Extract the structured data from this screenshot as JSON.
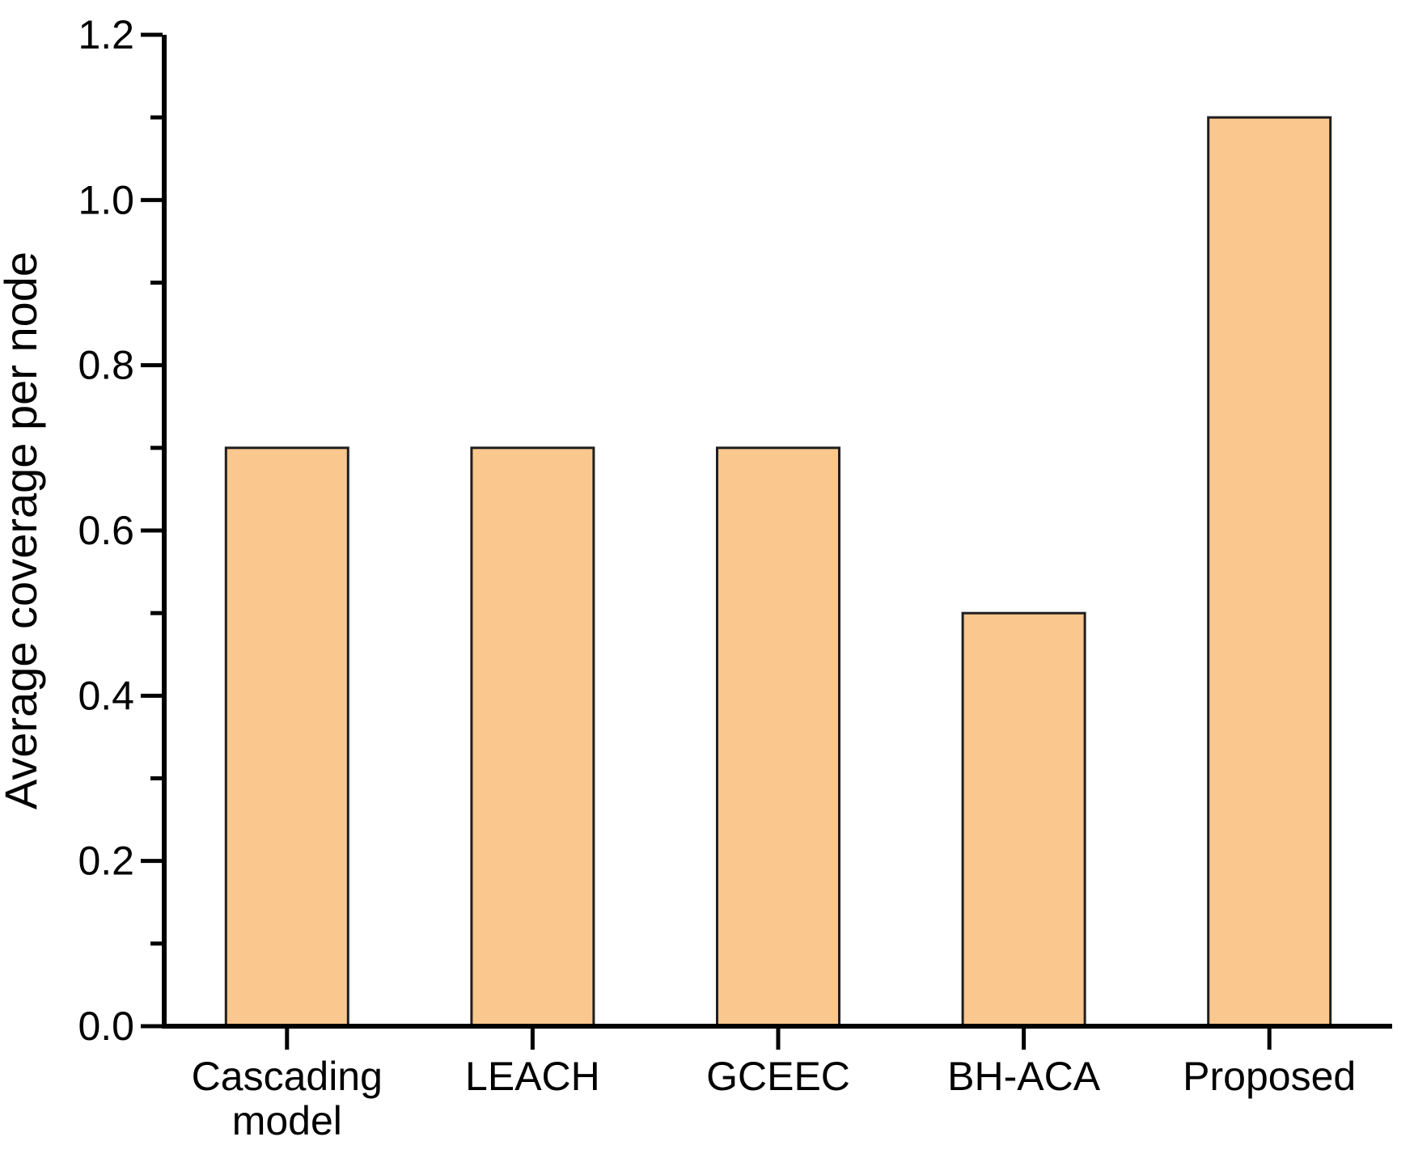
{
  "figure": {
    "background": "#FFFFFF"
  },
  "chart_data": {
    "type": "bar",
    "title": "",
    "xlabel": "",
    "ylabel": "Average coverage per node",
    "categories": [
      {
        "label": "Cascading model",
        "lines": [
          "Cascading",
          "model"
        ]
      },
      {
        "label": "LEACH",
        "lines": [
          "LEACH"
        ]
      },
      {
        "label": "GCEEC",
        "lines": [
          "GCEEC"
        ]
      },
      {
        "label": "BH-ACA",
        "lines": [
          "BH-ACA"
        ]
      },
      {
        "label": "Proposed",
        "lines": [
          "Proposed"
        ]
      }
    ],
    "values": [
      0.7,
      0.7,
      0.7,
      0.5,
      1.1
    ],
    "series": [
      {
        "name": "Average coverage per node",
        "values": [
          0.7,
          0.7,
          0.7,
          0.5,
          1.1
        ]
      }
    ],
    "ylim": [
      0,
      1.2
    ],
    "ytick_step": 0.2,
    "yminor_step": 0.1,
    "ytick_labels": [
      "0.0",
      "0.2",
      "0.4",
      "0.6",
      "0.8",
      "1.0",
      "1.2"
    ],
    "grid": false,
    "legend_position": "none",
    "colors": {
      "bar_fill": "#FAC78E",
      "bar_edge": "#1F1F1F",
      "axis": "#000000",
      "text": "#000000",
      "background": "#FFFFFF"
    }
  }
}
